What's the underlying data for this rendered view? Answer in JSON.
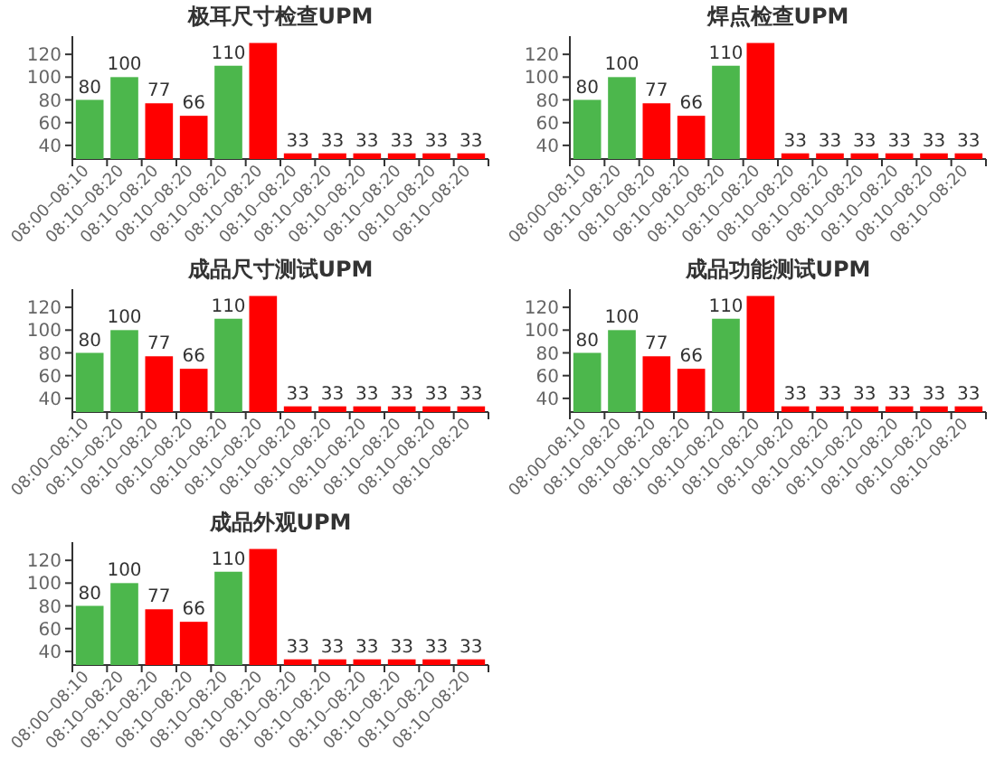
{
  "chart_data": [
    {
      "type": "bar",
      "title": "极耳尺寸检查UPM",
      "categories": [
        "08:00–08:10",
        "08:10–08:20",
        "08:10–08:20",
        "08:10–08:20",
        "08:10–08:20",
        "08:10–08:20",
        "08:10–08:20",
        "08:10–08:20",
        "08:10–08:20",
        "08:10–08:20",
        "08:10–08:20",
        "08:10–08:20"
      ],
      "values": [
        80,
        100,
        77,
        66,
        110,
        130,
        33,
        33,
        33,
        33,
        33,
        33
      ],
      "colors": [
        "#4cb74c",
        "#4cb74c",
        "#ff0000",
        "#ff0000",
        "#4cb74c",
        "#ff0000",
        "#ff0000",
        "#ff0000",
        "#ff0000",
        "#ff0000",
        "#ff0000",
        "#ff0000"
      ],
      "value_labels": [
        "80",
        "100",
        "77",
        "66",
        "110",
        null,
        "33",
        "33",
        "33",
        "33",
        "33",
        "33"
      ],
      "ylim": [
        28,
        136
      ],
      "yticks": [
        40,
        60,
        80,
        100,
        120
      ]
    },
    {
      "type": "bar",
      "title": "焊点检查UPM",
      "categories": [
        "08:00–08:10",
        "08:10–08:20",
        "08:10–08:20",
        "08:10–08:20",
        "08:10–08:20",
        "08:10–08:20",
        "08:10–08:20",
        "08:10–08:20",
        "08:10–08:20",
        "08:10–08:20",
        "08:10–08:20",
        "08:10–08:20"
      ],
      "values": [
        80,
        100,
        77,
        66,
        110,
        130,
        33,
        33,
        33,
        33,
        33,
        33
      ],
      "colors": [
        "#4cb74c",
        "#4cb74c",
        "#ff0000",
        "#ff0000",
        "#4cb74c",
        "#ff0000",
        "#ff0000",
        "#ff0000",
        "#ff0000",
        "#ff0000",
        "#ff0000",
        "#ff0000"
      ],
      "value_labels": [
        "80",
        "100",
        "77",
        "66",
        "110",
        null,
        "33",
        "33",
        "33",
        "33",
        "33",
        "33"
      ],
      "ylim": [
        28,
        136
      ],
      "yticks": [
        40,
        60,
        80,
        100,
        120
      ]
    },
    {
      "type": "bar",
      "title": "成品尺寸测试UPM",
      "categories": [
        "08:00–08:10",
        "08:10–08:20",
        "08:10–08:20",
        "08:10–08:20",
        "08:10–08:20",
        "08:10–08:20",
        "08:10–08:20",
        "08:10–08:20",
        "08:10–08:20",
        "08:10–08:20",
        "08:10–08:20",
        "08:10–08:20"
      ],
      "values": [
        80,
        100,
        77,
        66,
        110,
        130,
        33,
        33,
        33,
        33,
        33,
        33
      ],
      "colors": [
        "#4cb74c",
        "#4cb74c",
        "#ff0000",
        "#ff0000",
        "#4cb74c",
        "#ff0000",
        "#ff0000",
        "#ff0000",
        "#ff0000",
        "#ff0000",
        "#ff0000",
        "#ff0000"
      ],
      "value_labels": [
        "80",
        "100",
        "77",
        "66",
        "110",
        null,
        "33",
        "33",
        "33",
        "33",
        "33",
        "33"
      ],
      "ylim": [
        28,
        136
      ],
      "yticks": [
        40,
        60,
        80,
        100,
        120
      ]
    },
    {
      "type": "bar",
      "title": "成品功能测试UPM",
      "categories": [
        "08:00–08:10",
        "08:10–08:20",
        "08:10–08:20",
        "08:10–08:20",
        "08:10–08:20",
        "08:10–08:20",
        "08:10–08:20",
        "08:10–08:20",
        "08:10–08:20",
        "08:10–08:20",
        "08:10–08:20",
        "08:10–08:20"
      ],
      "values": [
        80,
        100,
        77,
        66,
        110,
        130,
        33,
        33,
        33,
        33,
        33,
        33
      ],
      "colors": [
        "#4cb74c",
        "#4cb74c",
        "#ff0000",
        "#ff0000",
        "#4cb74c",
        "#ff0000",
        "#ff0000",
        "#ff0000",
        "#ff0000",
        "#ff0000",
        "#ff0000",
        "#ff0000"
      ],
      "value_labels": [
        "80",
        "100",
        "77",
        "66",
        "110",
        null,
        "33",
        "33",
        "33",
        "33",
        "33",
        "33"
      ],
      "ylim": [
        28,
        136
      ],
      "yticks": [
        40,
        60,
        80,
        100,
        120
      ]
    },
    {
      "type": "bar",
      "title": "成品外观UPM",
      "categories": [
        "08:00–08:10",
        "08:10–08:20",
        "08:10–08:20",
        "08:10–08:20",
        "08:10–08:20",
        "08:10–08:20",
        "08:10–08:20",
        "08:10–08:20",
        "08:10–08:20",
        "08:10–08:20",
        "08:10–08:20",
        "08:10–08:20"
      ],
      "values": [
        80,
        100,
        77,
        66,
        110,
        130,
        33,
        33,
        33,
        33,
        33,
        33
      ],
      "colors": [
        "#4cb74c",
        "#4cb74c",
        "#ff0000",
        "#ff0000",
        "#4cb74c",
        "#ff0000",
        "#ff0000",
        "#ff0000",
        "#ff0000",
        "#ff0000",
        "#ff0000",
        "#ff0000"
      ],
      "value_labels": [
        "80",
        "100",
        "77",
        "66",
        "110",
        null,
        "33",
        "33",
        "33",
        "33",
        "33",
        "33"
      ],
      "ylim": [
        28,
        136
      ],
      "yticks": [
        40,
        60,
        80,
        100,
        120
      ]
    }
  ]
}
